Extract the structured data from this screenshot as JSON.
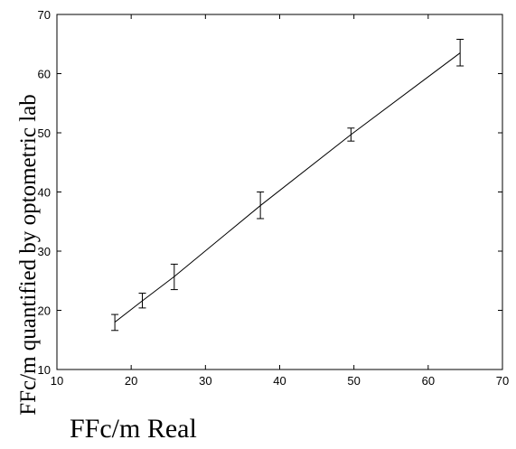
{
  "chart_data": {
    "type": "line",
    "title": "",
    "xlabel": "FFc/m Real",
    "ylabel": "FFc/m quantified by optometric lab",
    "xlim": [
      10,
      70
    ],
    "ylim": [
      10,
      70
    ],
    "xticks": [
      "10",
      "20",
      "30",
      "40",
      "50",
      "60",
      "70"
    ],
    "yticks": [
      "10",
      "20",
      "30",
      "40",
      "50",
      "60",
      "70"
    ],
    "grid": false,
    "series": [
      {
        "style": "errorbar-with-line",
        "color": "#000000",
        "points": [
          {
            "x": 17.8,
            "y": 18.0,
            "low": 16.6,
            "high": 19.3
          },
          {
            "x": 21.5,
            "y": 21.6,
            "low": 20.4,
            "high": 22.9
          },
          {
            "x": 25.8,
            "y": 25.7,
            "low": 23.5,
            "high": 27.8
          },
          {
            "x": 37.4,
            "y": 37.7,
            "low": 35.5,
            "high": 40.0
          },
          {
            "x": 49.6,
            "y": 49.7,
            "low": 48.6,
            "high": 50.8
          },
          {
            "x": 64.3,
            "y": 63.5,
            "low": 61.3,
            "high": 65.8
          }
        ]
      }
    ]
  }
}
